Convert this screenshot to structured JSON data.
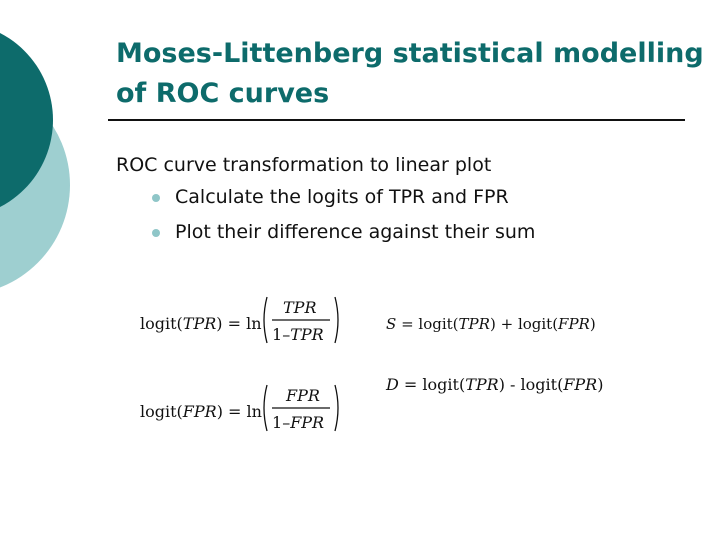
{
  "slide": {
    "title_line1": "Moses-Littenberg statistical modelling",
    "title_line2": "of ROC curves",
    "intro": "ROC curve transformation to linear plot",
    "bullets": [
      "Calculate the logits of TPR and FPR",
      "Plot their difference against their sum"
    ]
  },
  "equations": {
    "logit_tpr": {
      "lhs_fn": "logit(",
      "lhs_var": "TPR",
      "lhs_close": ")",
      "eq": "=",
      "ln": "ln",
      "num": "TPR",
      "den_one": "1",
      "den_minus": "–",
      "den_var": "TPR"
    },
    "logit_fpr": {
      "lhs_fn": "logit(",
      "lhs_var": "FPR",
      "lhs_close": ")",
      "eq": "=",
      "ln": "ln",
      "num": "FPR",
      "den_one": "1",
      "den_minus": "–",
      "den_var": "FPR"
    },
    "sum": {
      "lhs": "S",
      "eq": "=",
      "fn1": "logit(",
      "var1": "TPR",
      "close1": ")",
      "op": "+",
      "fn2": "logit(",
      "var2": "FPR",
      "close2": ")"
    },
    "diff": {
      "lhs": "D",
      "eq": "=",
      "fn1": "logit(",
      "var1": "TPR",
      "close1": ")",
      "op": "-",
      "fn2": "logit(",
      "var2": "FPR",
      "close2": ")"
    }
  },
  "colors": {
    "title": "#0d6b6b",
    "decor_dark": "#0d6b6b",
    "decor_light": "#8fc6c8",
    "bullet": "#8fc6c8"
  }
}
